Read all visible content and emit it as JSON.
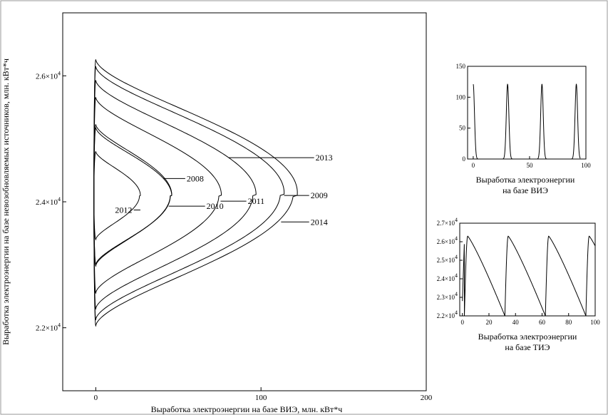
{
  "chart_data": [
    {
      "type": "line",
      "name": "phase-portrait",
      "xlabel": "Выработка электроэнергии на базе ВИЭ, млн. кВт*ч",
      "ylabel": "Выработка электроэнергии на базе невозобновляемых источников, млн. кВт*ч",
      "xlim": [
        -20,
        200
      ],
      "ylim": [
        21000,
        27000
      ],
      "x_ticks": [
        {
          "v": 0,
          "label": "0"
        },
        {
          "v": 100,
          "label": "100"
        },
        {
          "v": 200,
          "label": "200"
        }
      ],
      "y_ticks": [
        {
          "v": 22000,
          "mant": "2.2×10",
          "exp": "4"
        },
        {
          "v": 24000,
          "mant": "2.4×10",
          "exp": "4"
        },
        {
          "v": 26000,
          "mant": "2.6×10",
          "exp": "4"
        }
      ],
      "series": [
        {
          "name": "2012",
          "xmax": 27,
          "ymin": 23400,
          "ymax": 24800,
          "ypeak": 24100,
          "label_side": "left",
          "label_xy": [
            23,
            23870
          ],
          "leader_y": 23870
        },
        {
          "name": "2008",
          "xmax": 46,
          "ymin": 23000,
          "ymax": 25180,
          "ypeak": 24100,
          "label_side": "right",
          "label_xy": [
            55,
            24370
          ],
          "leader_y": 24370
        },
        {
          "name": "2010",
          "xmax": 46,
          "ymin": 22980,
          "ymax": 25230,
          "ypeak": 24100,
          "label_side": "right",
          "label_xy": [
            67,
            23930
          ],
          "leader_y": 23930
        },
        {
          "name": "2011",
          "xmax": 76,
          "ymin": 22550,
          "ymax": 25660,
          "ypeak": 24100,
          "label_side": "right",
          "label_xy": [
            92,
            24010
          ],
          "leader_y": 24010
        },
        {
          "name": "2013",
          "xmax": 97,
          "ymin": 22300,
          "ymax": 25930,
          "ypeak": 24100,
          "label_side": "right",
          "label_xy": [
            133,
            24700
          ],
          "leader_y": 24700
        },
        {
          "name": "2009",
          "xmax": 114,
          "ymin": 22130,
          "ymax": 26150,
          "ypeak": 24100,
          "label_side": "right",
          "label_xy": [
            130,
            24100
          ],
          "leader_y": 24100
        },
        {
          "name": "2014",
          "xmax": 122,
          "ymin": 22030,
          "ymax": 26260,
          "ypeak": 24100,
          "label_side": "right",
          "label_xy": [
            130,
            23680
          ],
          "leader_y": 23680
        }
      ]
    },
    {
      "type": "line",
      "name": "vie-time-series",
      "xlabel": "Выработка электроэнергии на базе ВИЭ",
      "xlim": [
        -5,
        100
      ],
      "ylim": [
        0,
        150
      ],
      "x_ticks": [
        0,
        50,
        100
      ],
      "y_ticks": [
        0,
        50,
        100,
        150
      ],
      "period": 30.5,
      "peak_value": 121,
      "peak_half_width": 1.6
    },
    {
      "type": "line",
      "name": "tie-time-series",
      "xlabel": "Выработка электроэнергии на базе ТИЭ",
      "xlim": [
        -2,
        100
      ],
      "ylim": [
        22000,
        27000
      ],
      "x_ticks": [
        0,
        20,
        40,
        60,
        80,
        100
      ],
      "y_ticks": [
        {
          "v": 22000,
          "mant": "2.2×10",
          "exp": "4"
        },
        {
          "v": 23000,
          "mant": "2.3×10",
          "exp": "4"
        },
        {
          "v": 24000,
          "mant": "2.4×10",
          "exp": "4"
        },
        {
          "v": 25000,
          "mant": "2.5×10",
          "exp": "4"
        },
        {
          "v": 26000,
          "mant": "2.6×10",
          "exp": "4"
        },
        {
          "v": 27000,
          "mant": "2.7×10",
          "exp": "4"
        }
      ],
      "period": 30.5,
      "y_high": 26300,
      "y_low": 22000,
      "rise_width": 2.5,
      "phase": 1.5
    }
  ]
}
